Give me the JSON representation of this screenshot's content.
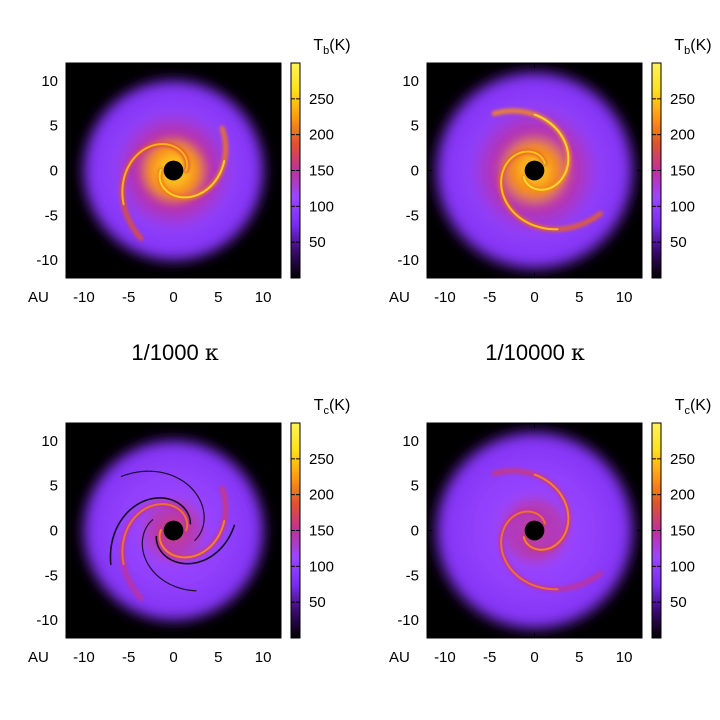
{
  "figure": {
    "col_labels": [
      {
        "main": "1/1000 ",
        "symbol": "κ"
      },
      {
        "main": "1/10000 ",
        "symbol": "κ"
      }
    ]
  },
  "colormap": {
    "stops": [
      "#000000",
      "#3a0a6e",
      "#7a2df0",
      "#9a46ff",
      "#c0309a",
      "#e0522f",
      "#ff9a12",
      "#ffe11a",
      "#fff35a"
    ],
    "background": "#000000"
  },
  "chart_data": [
    {
      "type": "heatmap",
      "panel": "top-left",
      "quantity": {
        "symbol": "T",
        "sub": "b",
        "unit": "(K)"
      },
      "xlabel": "AU",
      "xlim": [
        -12,
        12
      ],
      "ylim": [
        -12,
        12
      ],
      "xticks": [
        -10,
        -5,
        0,
        5,
        10
      ],
      "yticks": [
        -10,
        -5,
        0,
        5,
        10
      ],
      "colorbar": {
        "range": [
          0,
          300
        ],
        "ticks": [
          50,
          100,
          150,
          200,
          250
        ]
      },
      "disk": {
        "outer_radius_au": 11,
        "inner_hole_au": 1.1,
        "spirals": [
          {
            "phase": 0.0,
            "pitch": 0.42,
            "r0": 1.4,
            "r1": 8.4,
            "temp": 185
          },
          {
            "phase": 3.1,
            "pitch": 0.42,
            "r0": 1.4,
            "r1": 7.2,
            "temp": 205
          }
        ],
        "core_temp": 270,
        "core_radius_au": 4.2
      }
    },
    {
      "type": "heatmap",
      "panel": "top-right",
      "quantity": {
        "symbol": "T",
        "sub": "b",
        "unit": "(K)"
      },
      "xlabel": "AU",
      "xlim": [
        -12,
        12
      ],
      "ylim": [
        -12,
        12
      ],
      "xticks": [
        -10,
        -5,
        0,
        5,
        10
      ],
      "yticks": [
        -10,
        -5,
        0,
        5,
        10
      ],
      "colorbar": {
        "range": [
          0,
          300
        ],
        "ticks": [
          50,
          100,
          150,
          200,
          250
        ]
      },
      "disk": {
        "outer_radius_au": 12,
        "inner_hole_au": 1.1,
        "spirals": [
          {
            "phase": 0.6,
            "pitch": 0.36,
            "r0": 1.4,
            "r1": 8.8,
            "temp": 195
          },
          {
            "phase": 3.7,
            "pitch": 0.36,
            "r0": 1.4,
            "r1": 7.8,
            "temp": 215
          }
        ],
        "core_temp": 265,
        "core_radius_au": 4.0
      }
    },
    {
      "type": "heatmap",
      "panel": "bottom-left",
      "quantity": {
        "symbol": "T",
        "sub": "c",
        "unit": "(K)"
      },
      "xlabel": "AU",
      "xlim": [
        -12,
        12
      ],
      "ylim": [
        -12,
        12
      ],
      "xticks": [
        -10,
        -5,
        0,
        5,
        10
      ],
      "yticks": [
        -10,
        -5,
        0,
        5,
        10
      ],
      "colorbar": {
        "range": [
          0,
          300
        ],
        "ticks": [
          50,
          100,
          150,
          200,
          250
        ]
      },
      "disk": {
        "outer_radius_au": 11,
        "inner_hole_au": 1.1,
        "spirals": [
          {
            "phase": 0.0,
            "pitch": 0.42,
            "r0": 1.4,
            "r1": 8.4,
            "temp": 150
          },
          {
            "phase": 3.1,
            "pitch": 0.42,
            "r0": 1.4,
            "r1": 7.2,
            "temp": 160
          }
        ],
        "core_temp": 170,
        "core_radius_au": 3.2,
        "dark_filaments": true
      }
    },
    {
      "type": "heatmap",
      "panel": "bottom-right",
      "quantity": {
        "symbol": "T",
        "sub": "c",
        "unit": "(K)"
      },
      "xlabel": "AU",
      "xlim": [
        -12,
        12
      ],
      "ylim": [
        -12,
        12
      ],
      "xticks": [
        -10,
        -5,
        0,
        5,
        10
      ],
      "yticks": [
        -10,
        -5,
        0,
        5,
        10
      ],
      "colorbar": {
        "range": [
          0,
          300
        ],
        "ticks": [
          50,
          100,
          150,
          200,
          250
        ]
      },
      "disk": {
        "outer_radius_au": 12,
        "inner_hole_au": 1.1,
        "spirals": [
          {
            "phase": 0.6,
            "pitch": 0.36,
            "r0": 1.4,
            "r1": 8.8,
            "temp": 150
          },
          {
            "phase": 3.7,
            "pitch": 0.36,
            "r0": 1.4,
            "r1": 7.8,
            "temp": 160
          }
        ],
        "core_temp": 165,
        "core_radius_au": 3.0,
        "dark_filaments": false
      }
    }
  ]
}
